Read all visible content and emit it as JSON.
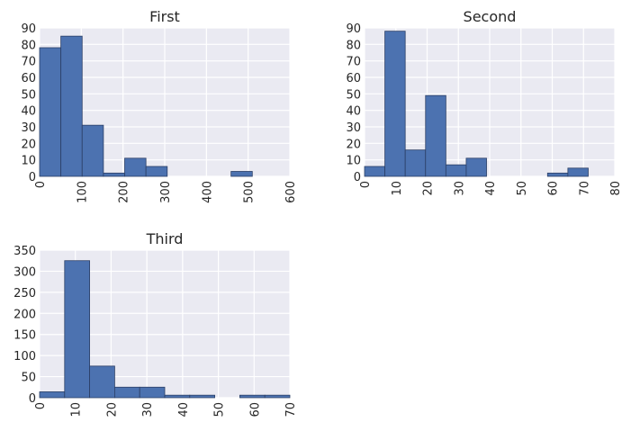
{
  "chart_data": [
    {
      "type": "bar",
      "title": "First",
      "xlabel": "",
      "ylabel": "",
      "bin_edges": [
        0,
        51,
        102,
        153,
        204,
        255,
        306,
        357,
        408,
        459,
        510
      ],
      "values": [
        78,
        85,
        31,
        2,
        11,
        6,
        0,
        0,
        0,
        3
      ],
      "xlim": [
        0,
        600
      ],
      "ylim": [
        0,
        90
      ],
      "xticks": [
        0,
        100,
        200,
        300,
        400,
        500,
        600
      ],
      "yticks": [
        0,
        10,
        20,
        30,
        40,
        50,
        60,
        70,
        80,
        90
      ],
      "grid": true,
      "bar_color": "#4c72b0",
      "edge_color": "#2b3f66",
      "background_color": "#eaeaf2"
    },
    {
      "type": "bar",
      "title": "Second",
      "xlabel": "",
      "ylabel": "",
      "bin_edges": [
        0,
        6.5,
        13,
        19.5,
        26,
        32.5,
        39,
        45.5,
        52,
        58.5,
        65,
        71.5
      ],
      "values": [
        6,
        88,
        16,
        49,
        7,
        11,
        0,
        0,
        0,
        2,
        5
      ],
      "xlim": [
        0,
        80
      ],
      "ylim": [
        0,
        90
      ],
      "xticks": [
        0,
        10,
        20,
        30,
        40,
        50,
        60,
        70,
        80
      ],
      "yticks": [
        0,
        10,
        20,
        30,
        40,
        50,
        60,
        70,
        80,
        90
      ],
      "grid": true,
      "bar_color": "#4c72b0",
      "edge_color": "#2b3f66",
      "background_color": "#eaeaf2"
    },
    {
      "type": "bar",
      "title": "Third",
      "xlabel": "",
      "ylabel": "",
      "bin_edges": [
        0,
        7,
        14,
        21,
        28,
        35,
        42,
        49,
        56,
        63,
        70
      ],
      "values": [
        14,
        325,
        75,
        25,
        25,
        6,
        6,
        0,
        6,
        6
      ],
      "xlim": [
        0,
        70
      ],
      "ylim": [
        0,
        350
      ],
      "xticks": [
        0,
        10,
        20,
        30,
        40,
        50,
        60,
        70
      ],
      "yticks": [
        0,
        50,
        100,
        150,
        200,
        250,
        300,
        350
      ],
      "grid": true,
      "bar_color": "#4c72b0",
      "edge_color": "#2b3f66",
      "background_color": "#eaeaf2"
    }
  ]
}
